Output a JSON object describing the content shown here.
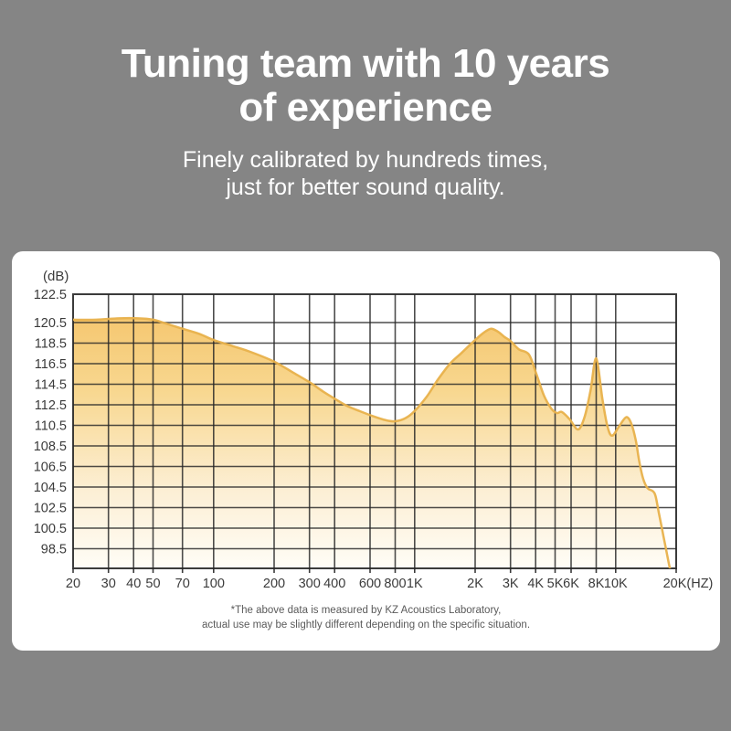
{
  "page": {
    "background": "#858585"
  },
  "header": {
    "title_line1": "Tuning team with 10 years",
    "title_line2": "of experience",
    "subtitle_line1": "Finely calibrated by hundreds times,",
    "subtitle_line2": "just for better sound quality."
  },
  "footnote": {
    "line1": "*The above data is measured by KZ Acoustics Laboratory,",
    "line2": "actual use may be slightly different depending on the specific situation."
  },
  "chart_data": {
    "type": "area",
    "title": "",
    "x_scale": "log",
    "xlabel": "",
    "ylabel": "(dB)",
    "x_unit_suffix": "(HZ)",
    "x_range_hz": [
      20,
      20000
    ],
    "ylim": [
      96.6,
      122.5
    ],
    "grid": true,
    "legend": false,
    "y_ticks": [
      122.5,
      120.5,
      118.5,
      116.5,
      114.5,
      112.5,
      110.5,
      108.5,
      106.5,
      104.5,
      102.5,
      100.5,
      98.5
    ],
    "x_ticks": [
      {
        "hz": 20,
        "label": "20"
      },
      {
        "hz": 30,
        "label": "30"
      },
      {
        "hz": 40,
        "label": "40"
      },
      {
        "hz": 50,
        "label": "50"
      },
      {
        "hz": 70,
        "label": "70"
      },
      {
        "hz": 100,
        "label": "100"
      },
      {
        "hz": 200,
        "label": "200"
      },
      {
        "hz": 300,
        "label": "300"
      },
      {
        "hz": 400,
        "label": "400"
      },
      {
        "hz": 600,
        "label": "600"
      },
      {
        "hz": 800,
        "label": "800"
      },
      {
        "hz": 1000,
        "label": "1K"
      },
      {
        "hz": 2000,
        "label": "2K"
      },
      {
        "hz": 3000,
        "label": "3K"
      },
      {
        "hz": 4000,
        "label": "4K"
      },
      {
        "hz": 5000,
        "label": "5K"
      },
      {
        "hz": 6000,
        "label": "6K"
      },
      {
        "hz": 8000,
        "label": "8K"
      },
      {
        "hz": 10000,
        "label": "10K"
      },
      {
        "hz": 20000,
        "label": "20K(HZ)"
      }
    ],
    "series": [
      {
        "name": "frequency-response-db-vs-hz",
        "points_hz_db": [
          [
            20,
            120.7
          ],
          [
            26,
            120.7
          ],
          [
            34,
            120.8
          ],
          [
            42,
            120.8
          ],
          [
            50,
            120.7
          ],
          [
            58,
            120.4
          ],
          [
            70,
            119.9
          ],
          [
            85,
            119.4
          ],
          [
            100,
            118.8
          ],
          [
            125,
            118.2
          ],
          [
            150,
            117.7
          ],
          [
            200,
            116.7
          ],
          [
            250,
            115.6
          ],
          [
            300,
            114.7
          ],
          [
            350,
            113.8
          ],
          [
            400,
            113.1
          ],
          [
            460,
            112.4
          ],
          [
            530,
            111.9
          ],
          [
            620,
            111.4
          ],
          [
            720,
            111.0
          ],
          [
            800,
            110.9
          ],
          [
            900,
            111.2
          ],
          [
            1000,
            111.9
          ],
          [
            1150,
            113.3
          ],
          [
            1300,
            114.9
          ],
          [
            1500,
            116.5
          ],
          [
            1700,
            117.5
          ],
          [
            2000,
            118.8
          ],
          [
            2200,
            119.5
          ],
          [
            2400,
            119.9
          ],
          [
            2600,
            119.6
          ],
          [
            2800,
            119.1
          ],
          [
            3000,
            118.7
          ],
          [
            3300,
            117.9
          ],
          [
            3700,
            117.4
          ],
          [
            4000,
            115.7
          ],
          [
            4400,
            113.4
          ],
          [
            4800,
            112.1
          ],
          [
            5100,
            111.7
          ],
          [
            5400,
            111.8
          ],
          [
            5900,
            111.1
          ],
          [
            6500,
            110.1
          ],
          [
            7000,
            111.3
          ],
          [
            7500,
            113.9
          ],
          [
            8000,
            117.0
          ],
          [
            8600,
            113.0
          ],
          [
            9100,
            110.4
          ],
          [
            9600,
            109.5
          ],
          [
            10400,
            110.4
          ],
          [
            11300,
            111.3
          ],
          [
            12000,
            110.6
          ],
          [
            12600,
            109.0
          ],
          [
            13100,
            107.0
          ],
          [
            13700,
            105.3
          ],
          [
            14400,
            104.4
          ],
          [
            15300,
            104.1
          ],
          [
            15800,
            103.6
          ],
          [
            16400,
            102.0
          ],
          [
            17300,
            99.7
          ],
          [
            18200,
            97.5
          ],
          [
            18600,
            96.6
          ]
        ]
      }
    ],
    "colors": {
      "grid": "#262626",
      "border": "#262626",
      "curve_stroke": "#e8b14b",
      "fill_top": "#f4c267",
      "fill_mid": "#f8d78f",
      "fill_low": "#fcefd5",
      "fill_bottom": "#fffdf6",
      "axis_text": "#3b3b3b"
    }
  }
}
